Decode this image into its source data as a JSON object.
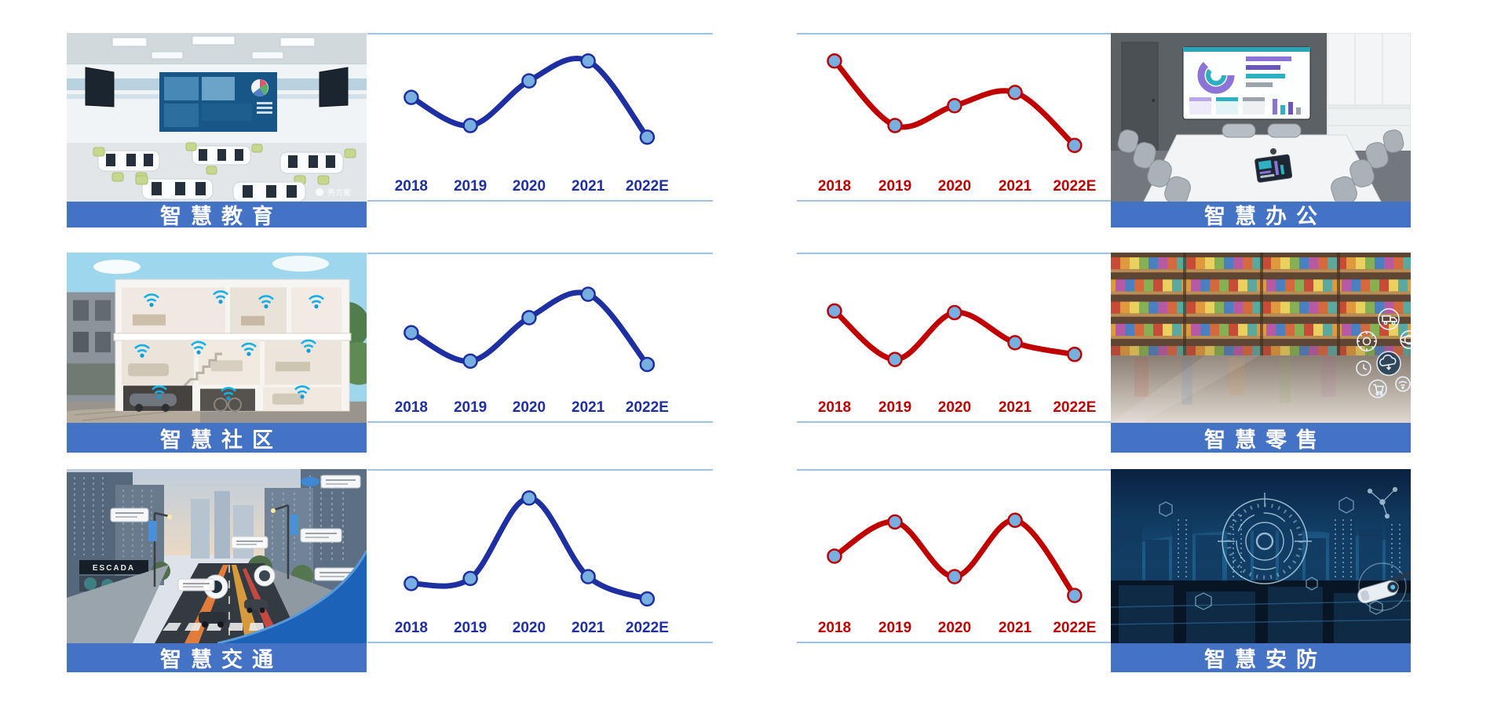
{
  "page": {
    "background": "#ffffff"
  },
  "colors": {
    "title_bar_blue": "#4472C4",
    "title_text": "#FFFFFF",
    "rule_light_blue": "#9DC3E6",
    "blue_line": "#1E2FA2",
    "red_line": "#C00000",
    "marker_fill": "#76AFE0"
  },
  "panels": [
    {
      "title": "智慧教育",
      "photo": "classroom"
    },
    {
      "title": "智慧办公",
      "photo": "meeting-room"
    },
    {
      "title": "智慧社区",
      "photo": "smart-home"
    },
    {
      "title": "智慧零售",
      "photo": "supermarket"
    },
    {
      "title": "智慧交通",
      "photo": "street"
    },
    {
      "title": "智慧安防",
      "photo": "night-city"
    }
  ],
  "photo_text": {
    "classroom_watermark": "秀方案",
    "street_storefront_sign": "ESCADA"
  },
  "photo_icons": {
    "smart_home": [
      "wifi-icon"
    ],
    "supermarket": [
      "gear-icon",
      "truck-icon",
      "globe-icon",
      "clock-icon",
      "cloud-icon",
      "cart-icon",
      "wifi-icon"
    ],
    "night_city": [
      "hud-rings-icon",
      "hexagon-icon",
      "camera-icon"
    ]
  },
  "chart_data": [
    {
      "panel": "智慧教育",
      "type": "line",
      "categories": [
        "2018",
        "2019",
        "2020",
        "2021",
        "2022E"
      ],
      "values": [
        62,
        45,
        72,
        84,
        38
      ],
      "ylim": [
        0,
        100
      ],
      "grid": false,
      "legend": null,
      "note": "no y-axis shown; values are relative heights (0-100) read from the curve",
      "line_color": "#1E2FA2",
      "label_color": "#1E2FA2",
      "marker_fill": "#76AFE0"
    },
    {
      "panel": "智慧办公",
      "type": "line",
      "categories": [
        "2018",
        "2019",
        "2020",
        "2021",
        "2022E"
      ],
      "values": [
        84,
        45,
        57,
        65,
        33
      ],
      "ylim": [
        0,
        100
      ],
      "grid": false,
      "legend": null,
      "note": "no y-axis shown; values are relative heights (0-100) read from the curve",
      "line_color": "#C00000",
      "label_color": "#C00000",
      "marker_fill": "#76AFE0"
    },
    {
      "panel": "智慧社区",
      "type": "line",
      "categories": [
        "2018",
        "2019",
        "2020",
        "2021",
        "2022E"
      ],
      "values": [
        53,
        36,
        62,
        76,
        34
      ],
      "ylim": [
        0,
        100
      ],
      "grid": false,
      "legend": null,
      "note": "no y-axis shown; values are relative heights (0-100) read from the curve",
      "line_color": "#1E2FA2",
      "label_color": "#1E2FA2",
      "marker_fill": "#76AFE0"
    },
    {
      "panel": "智慧零售",
      "type": "line",
      "categories": [
        "2018",
        "2019",
        "2020",
        "2021",
        "2022E"
      ],
      "values": [
        66,
        37,
        65,
        47,
        40
      ],
      "ylim": [
        0,
        100
      ],
      "grid": false,
      "legend": null,
      "note": "no y-axis shown; values are relative heights (0-100) read from the curve",
      "line_color": "#C00000",
      "label_color": "#C00000",
      "marker_fill": "#76AFE0"
    },
    {
      "panel": "智慧交通",
      "type": "line",
      "categories": [
        "2018",
        "2019",
        "2020",
        "2021",
        "2022E"
      ],
      "values": [
        34,
        37,
        84,
        38,
        25
      ],
      "ylim": [
        0,
        100
      ],
      "grid": false,
      "legend": null,
      "note": "no y-axis shown; values are relative heights (0-100) read from the curve",
      "line_color": "#1E2FA2",
      "label_color": "#1E2FA2",
      "marker_fill": "#76AFE0"
    },
    {
      "panel": "智慧安防",
      "type": "line",
      "categories": [
        "2018",
        "2019",
        "2020",
        "2021",
        "2022E"
      ],
      "values": [
        50,
        70,
        38,
        71,
        27
      ],
      "ylim": [
        0,
        100
      ],
      "grid": false,
      "legend": null,
      "note": "no y-axis shown; values are relative heights (0-100) read from the curve",
      "line_color": "#C00000",
      "label_color": "#C00000",
      "marker_fill": "#76AFE0"
    }
  ]
}
